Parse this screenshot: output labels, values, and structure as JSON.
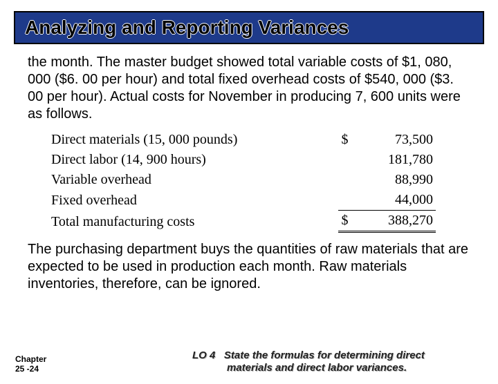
{
  "title": "Analyzing and Reporting Variances",
  "para1": "the month. The master budget showed total variable costs of $1, 080, 000 ($6. 00 per hour) and total fixed overhead costs of $540, 000 ($3. 00 per hour). Actual costs for November in producing 7, 600 units were as follows.",
  "para2": "The purchasing department buys the quantities of raw materials that are expected to be used in production each month. Raw materials inventories, therefore, can be ignored.",
  "table": {
    "rows": [
      {
        "desc": "Direct materials (15, 000 pounds)",
        "cur": "$",
        "amt": "73,500",
        "underline": false
      },
      {
        "desc": "Direct labor (14, 900 hours)",
        "cur": "",
        "amt": "181,780",
        "underline": false
      },
      {
        "desc": "Variable overhead",
        "cur": "",
        "amt": "88,990",
        "underline": false
      },
      {
        "desc": "Fixed overhead",
        "cur": "",
        "amt": "44,000",
        "underline": true
      }
    ],
    "total": {
      "desc": "Total manufacturing costs",
      "cur": "$",
      "amt": "388,270"
    }
  },
  "footer": {
    "chapter_line1": "Chapter",
    "chapter_line2": "25 -24",
    "lo_label": "LO 4",
    "lo_text_line1": "State the formulas for determining direct",
    "lo_text_line2": "materials and direct labor variances."
  },
  "colors": {
    "title_bg": "#1e3a8a",
    "title_border": "#000000"
  }
}
